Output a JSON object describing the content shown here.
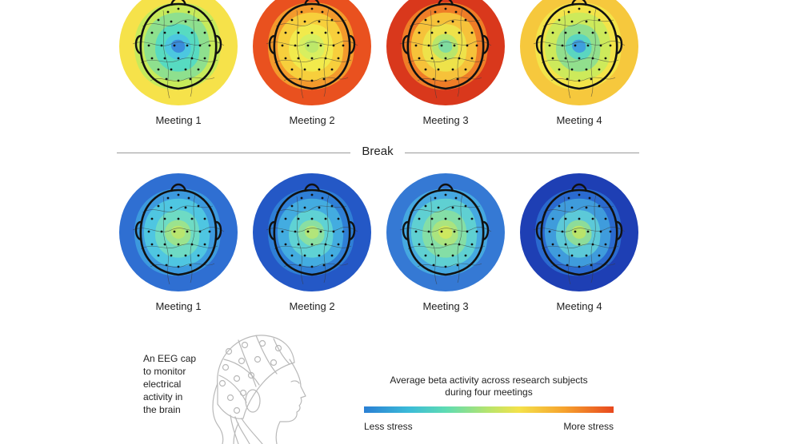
{
  "top_row": {
    "maps": [
      {
        "label": "Meeting 1",
        "colors": [
          "#f6e24a",
          "#c7ea5a",
          "#8ee08e",
          "#57dbc1",
          "#4cc7e0",
          "#3a8ddc"
        ]
      },
      {
        "label": "Meeting 2",
        "colors": [
          "#e9511f",
          "#f39a2c",
          "#f7cf3c",
          "#f2ea4c",
          "#d8ef5f",
          "#bde86a"
        ]
      },
      {
        "label": "Meeting 3",
        "colors": [
          "#d9381c",
          "#ef7d27",
          "#f6c23a",
          "#eee24a",
          "#b9e66a",
          "#7fdca0"
        ]
      },
      {
        "label": "Meeting 4",
        "colors": [
          "#f6c83d",
          "#f3e449",
          "#cdea5b",
          "#91df8d",
          "#5bd6c0",
          "#3fa0de"
        ]
      }
    ]
  },
  "divider": {
    "label": "Break"
  },
  "bottom_row": {
    "maps": [
      {
        "label": "Meeting 1",
        "colors": [
          "#2f6fd2",
          "#3c9ade",
          "#4fc6e1",
          "#6edbc4",
          "#9be38e",
          "#b9e66f"
        ]
      },
      {
        "label": "Meeting 2",
        "colors": [
          "#2458c6",
          "#2f7fd6",
          "#43ace0",
          "#5fd2d4",
          "#8adfa2",
          "#b2e57a"
        ]
      },
      {
        "label": "Meeting 3",
        "colors": [
          "#3579d4",
          "#45a8e0",
          "#5fd0d2",
          "#84dea6",
          "#aae47f",
          "#cde85f"
        ]
      },
      {
        "label": "Meeting 4",
        "colors": [
          "#1e3fb4",
          "#2a6acf",
          "#3f9cdc",
          "#5cc9d8",
          "#8ddc9a",
          "#b9e46b"
        ]
      }
    ]
  },
  "cap": {
    "caption_lines": [
      "An EEG cap",
      "to monitor",
      "electrical",
      "activity in",
      "the brain"
    ]
  },
  "legend": {
    "title_line1": "Average beta activity across research subjects",
    "title_line2": "during four meetings",
    "low_label": "Less stress",
    "high_label": "More stress"
  }
}
